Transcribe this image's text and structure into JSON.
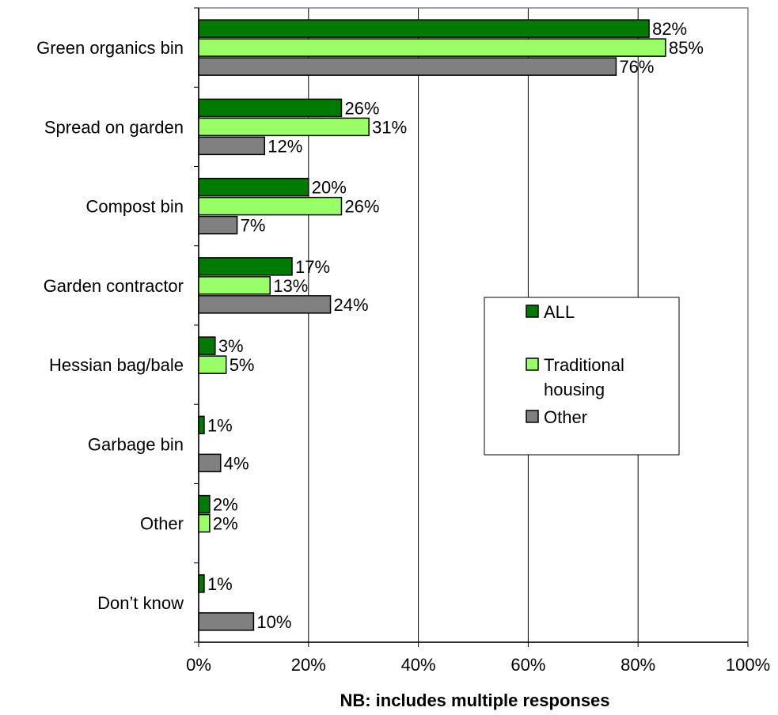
{
  "chart_data": {
    "type": "bar",
    "orientation": "horizontal",
    "categories": [
      "Green organics bin",
      "Spread on garden",
      "Compost bin",
      "Garden contractor",
      "Hessian bag/bale",
      "Garbage bin",
      "Other",
      "Don’t know"
    ],
    "series": [
      {
        "name": "ALL",
        "color": "#007a00",
        "values": [
          82,
          26,
          20,
          17,
          3,
          1,
          2,
          1
        ],
        "labels": [
          "82%",
          "26%",
          "20%",
          "17%",
          "3%",
          "1%",
          "2%",
          "1%"
        ]
      },
      {
        "name": "Traditional housing",
        "legend_lines": [
          "Traditional",
          "housing"
        ],
        "color": "#99ff66",
        "values": [
          85,
          31,
          26,
          13,
          5,
          null,
          2,
          null
        ],
        "labels": [
          "85%",
          "31%",
          "26%",
          "13%",
          "5%",
          null,
          "2%",
          null
        ]
      },
      {
        "name": "Other",
        "color": "#808080",
        "values": [
          76,
          12,
          7,
          24,
          null,
          4,
          null,
          10
        ],
        "labels": [
          "76%",
          "12%",
          "7%",
          "24%",
          null,
          "4%",
          null,
          "10%"
        ]
      }
    ],
    "xlim": [
      0,
      100
    ],
    "xticks": [
      0,
      20,
      40,
      60,
      80,
      100
    ],
    "xtick_labels": [
      "0%",
      "20%",
      "40%",
      "60%",
      "80%",
      "100%"
    ],
    "xlabel": "NB: includes multiple responses",
    "grid": "vertical",
    "legend": "right"
  }
}
